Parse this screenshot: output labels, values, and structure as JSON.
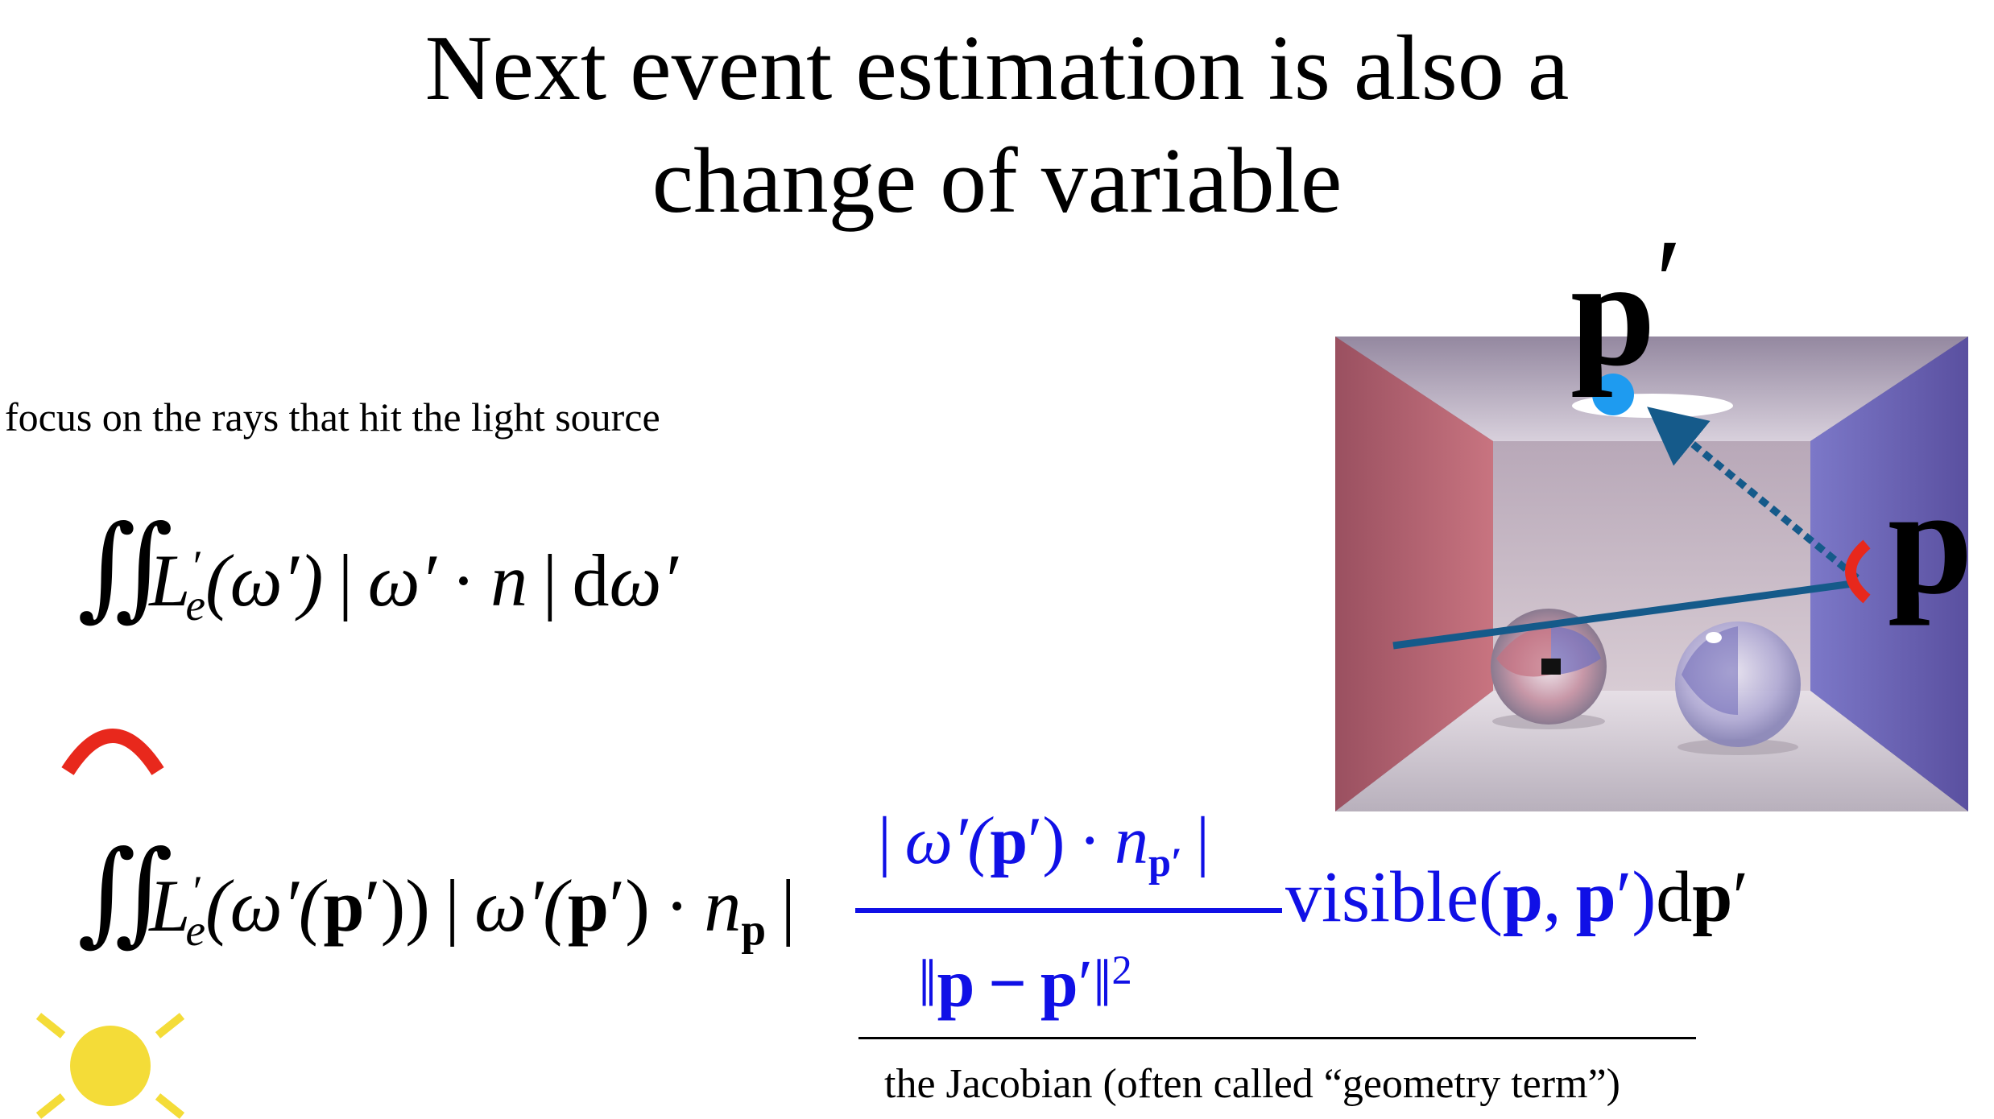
{
  "slide": {
    "title_line1": "Next event estimation is also a",
    "title_line2": "change of variable",
    "subtitle": "focus on the rays that hit the light source",
    "jacobian_caption": "the Jacobian (often called “geometry term”)"
  },
  "equation1": {
    "integral": "∬",
    "L": "L",
    "L_sub": "e",
    "prime": "′",
    "open": "(ω′)",
    "abs_left": "|",
    "omega": "ω′",
    "dot": "·",
    "n": "n",
    "abs_right": "|",
    "d": "d",
    "domega": "ω′"
  },
  "equation2": {
    "integral": "∬",
    "L": "L",
    "L_sub": "e",
    "prime": "′",
    "arg_open": "(ω′(",
    "p1": "p",
    "arg_close": "′))",
    "abs_left": "|",
    "omega": "ω′(",
    "p2": "p",
    "omega_close": "′)",
    "dot": "·",
    "n": "n",
    "n_sub": "p",
    "abs_right": "|",
    "num_left": "|",
    "num_omega": "ω′(",
    "num_p": "p",
    "num_close": "′)",
    "num_dot": "·",
    "num_n": "n",
    "num_n_sub": "p′",
    "num_right": "|",
    "den_left": "‖",
    "den_p1": "p",
    "den_minus": "−",
    "den_p2": "p",
    "den_prime": "′",
    "den_right": "‖",
    "den_sq": "2",
    "visible": "visible(",
    "vis_p1": "p",
    "vis_comma": ",",
    "vis_p2": "p",
    "vis_close": "′)",
    "d": "d",
    "dp": "p",
    "dp_prime": "′"
  },
  "scene": {
    "label_p_prime": "p",
    "label_p_prime_mark": "′",
    "label_p": "p"
  },
  "colors": {
    "blue_text": "#1010e6",
    "red_marker": "#e8281c",
    "sun": "#f4dc38",
    "light_point": "#1e9bf0",
    "ray": "#155a8a"
  },
  "icons": [
    "hemisphere-arc-icon",
    "sun-icon"
  ]
}
